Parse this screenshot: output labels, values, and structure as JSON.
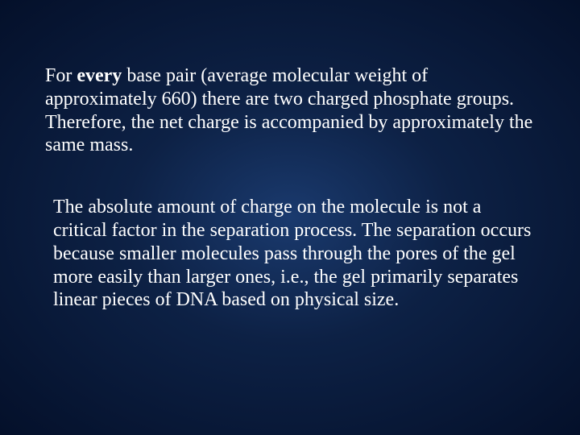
{
  "slide": {
    "background_gradient_center": "#1a3a6e",
    "background_gradient_mid": "#0d2145",
    "background_gradient_edge": "#04102a",
    "text_color": "#ffffff",
    "font_family": "Times New Roman",
    "font_size_pt": 24,
    "paragraph1": {
      "prefix": "For ",
      "bold_word": "every",
      "rest": " base pair (average molecular weight of approximately 660) there are two charged phosphate groups. Therefore, the net charge is accompanied by approximately the same mass."
    },
    "paragraph2": "The absolute amount of charge on the molecule is not a critical factor in the separation process. The separation occurs because smaller molecules pass through the pores of the gel more easily than larger ones, i.e., the gel primarily separates linear pieces of DNA based on physical size."
  }
}
